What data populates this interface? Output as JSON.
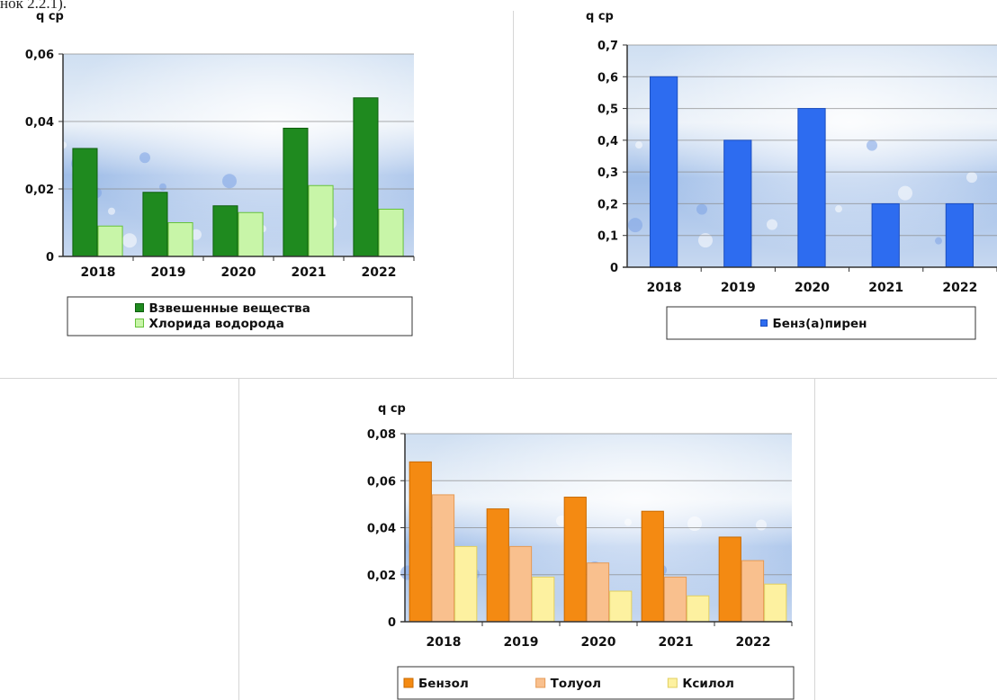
{
  "header_fragment": "нок 2.2.1).",
  "chart_data": [
    {
      "type": "bar",
      "ylabel": "q ср",
      "ylim": [
        0,
        0.06
      ],
      "yticks": [
        "0",
        "0,02",
        "0,04",
        "0,06"
      ],
      "categories": [
        "2018",
        "2019",
        "2020",
        "2021",
        "2022"
      ],
      "series": [
        {
          "name": "Взвешенные вещества",
          "values": [
            0.032,
            0.019,
            0.015,
            0.038,
            0.047
          ],
          "color": "#1f8a1f",
          "stroke": "#0d5e0d"
        },
        {
          "name": "Хлорида водорода",
          "values": [
            0.009,
            0.01,
            0.013,
            0.021,
            0.014
          ],
          "color": "#c8f5a8",
          "stroke": "#66c23a"
        }
      ],
      "grid": true,
      "legend": "bottom"
    },
    {
      "type": "bar",
      "ylabel": "q ср",
      "ylim": [
        0,
        0.7
      ],
      "yticks": [
        "0",
        "0,1",
        "0,2",
        "0,3",
        "0,4",
        "0,5",
        "0,6",
        "0,7"
      ],
      "categories": [
        "2018",
        "2019",
        "2020",
        "2021",
        "2022"
      ],
      "series": [
        {
          "name": "Бенз(а)пирен",
          "values": [
            0.6,
            0.4,
            0.5,
            0.2,
            0.2
          ],
          "color": "#2d6cf0",
          "stroke": "#1c4fc0"
        }
      ],
      "grid": true,
      "legend": "bottom"
    },
    {
      "type": "bar",
      "ylabel": "q ср",
      "ylim": [
        0,
        0.08
      ],
      "yticks": [
        "0",
        "0,02",
        "0,04",
        "0,06",
        "0,08"
      ],
      "categories": [
        "2018",
        "2019",
        "2020",
        "2021",
        "2022"
      ],
      "series": [
        {
          "name": "Бензол",
          "values": [
            0.068,
            0.048,
            0.053,
            0.047,
            0.036
          ],
          "color": "#f48a12",
          "stroke": "#c96a00"
        },
        {
          "name": "Толуол",
          "values": [
            0.054,
            0.032,
            0.025,
            0.019,
            0.026
          ],
          "color": "#f9c08e",
          "stroke": "#e69a55"
        },
        {
          "name": "Ксилол",
          "values": [
            0.032,
            0.019,
            0.013,
            0.011,
            0.016
          ],
          "color": "#fdf1a0",
          "stroke": "#e2cf60"
        }
      ],
      "grid": true,
      "legend": "bottom"
    }
  ]
}
